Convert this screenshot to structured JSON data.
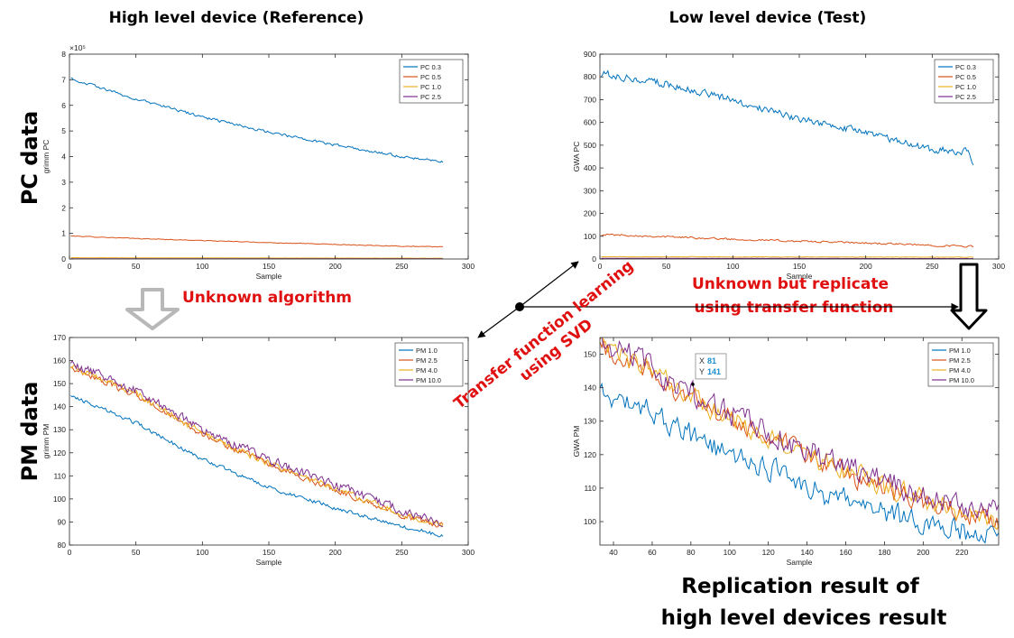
{
  "headers": {
    "left": "High level device (Reference)",
    "right": "Low level device (Test)"
  },
  "row_labels": {
    "top": "PC data",
    "bottom": "PM data"
  },
  "annotations": {
    "unknown_algorithm": "Unknown algorithm",
    "replicate_line1": "Unknown but replicate",
    "replicate_line2": "using transfer function",
    "svd_line1": "Transfer function learning",
    "svd_line2": "using  SVD",
    "result_line1": "Replication result of",
    "result_line2": "high level devices result"
  },
  "colors": {
    "series1": "#0072BD",
    "series2": "#D95319",
    "series3": "#EDB120",
    "series4": "#7E2F8E",
    "annotation_red": "#e01010",
    "arrow_gray": "#b8b8b8"
  },
  "chart_data": [
    {
      "id": "ref_pc",
      "type": "line",
      "ylabel": "grimm PC",
      "xlabel": "Sample",
      "xlim": [
        0,
        300
      ],
      "ylim": [
        0,
        8
      ],
      "yexp": "×10⁵",
      "xticks": [
        0,
        50,
        100,
        150,
        200,
        250,
        300
      ],
      "yticks": [
        0,
        1,
        2,
        3,
        4,
        5,
        6,
        7,
        8
      ],
      "legend": "top-right",
      "series": [
        {
          "name": "PC 0.3",
          "x": [
            1,
            50,
            100,
            150,
            200,
            250,
            281
          ],
          "values": [
            7.05,
            6.25,
            5.55,
            4.95,
            4.45,
            4.0,
            3.8
          ],
          "noise": 0.07
        },
        {
          "name": "PC 0.5",
          "x": [
            1,
            50,
            100,
            150,
            200,
            250,
            281
          ],
          "values": [
            0.9,
            0.8,
            0.72,
            0.64,
            0.57,
            0.5,
            0.47
          ],
          "noise": 0.02
        },
        {
          "name": "PC 1.0",
          "x": [
            1,
            281
          ],
          "values": [
            0.05,
            0.03
          ],
          "noise": 0.005
        },
        {
          "name": "PC 2.5",
          "x": [
            1,
            281
          ],
          "values": [
            0.01,
            0.01
          ],
          "noise": 0.002
        }
      ]
    },
    {
      "id": "test_pc",
      "type": "line",
      "ylabel": "GWA PC",
      "xlabel": "Sample",
      "xlim": [
        0,
        300
      ],
      "ylim": [
        0,
        900
      ],
      "xticks": [
        0,
        50,
        100,
        150,
        200,
        250,
        300
      ],
      "yticks": [
        0,
        100,
        200,
        300,
        400,
        500,
        600,
        700,
        800,
        900
      ],
      "legend": "top-right",
      "series": [
        {
          "name": "PC 0.3",
          "x": [
            1,
            50,
            100,
            150,
            200,
            250,
            278,
            281
          ],
          "values": [
            815,
            770,
            700,
            615,
            555,
            480,
            470,
            410
          ],
          "noise": 22
        },
        {
          "name": "PC 0.5",
          "x": [
            1,
            50,
            100,
            150,
            200,
            250,
            281
          ],
          "values": [
            108,
            98,
            87,
            78,
            70,
            60,
            55
          ],
          "noise": 6
        },
        {
          "name": "PC 1.0",
          "x": [
            1,
            281
          ],
          "values": [
            10,
            8
          ],
          "noise": 1.5
        },
        {
          "name": "PC 2.5",
          "x": [
            1,
            281
          ],
          "values": [
            3,
            2
          ],
          "noise": 0.5
        }
      ]
    },
    {
      "id": "ref_pm",
      "type": "line",
      "ylabel": "grimm PM",
      "xlabel": "Sample",
      "xlim": [
        0,
        300
      ],
      "ylim": [
        80,
        170
      ],
      "xticks": [
        0,
        50,
        100,
        150,
        200,
        250,
        300
      ],
      "yticks": [
        80,
        90,
        100,
        110,
        120,
        130,
        140,
        150,
        160,
        170
      ],
      "legend": "top-right",
      "series": [
        {
          "name": "PM 1.0",
          "x": [
            1,
            50,
            100,
            150,
            200,
            250,
            281
          ],
          "values": [
            145,
            133,
            117,
            105,
            96,
            88,
            84
          ],
          "noise": 1.2
        },
        {
          "name": "PM 2.5",
          "x": [
            1,
            50,
            100,
            150,
            200,
            250,
            281
          ],
          "values": [
            157,
            145,
            128,
            115,
            104,
            93,
            88
          ],
          "noise": 1.8
        },
        {
          "name": "PM 4.0",
          "x": [
            1,
            50,
            100,
            150,
            200,
            250,
            281
          ],
          "values": [
            157.5,
            146,
            128.5,
            115.5,
            104.5,
            93.5,
            88.5
          ],
          "noise": 1.9
        },
        {
          "name": "PM 10.0",
          "x": [
            1,
            50,
            100,
            150,
            200,
            250,
            281
          ],
          "values": [
            159,
            147,
            130,
            117,
            106,
            95,
            89
          ],
          "noise": 2.6
        }
      ]
    },
    {
      "id": "test_pm",
      "type": "line",
      "ylabel": "GWA PM",
      "xlabel": "Sample",
      "xlim": [
        33,
        239
      ],
      "ylim": [
        93,
        155
      ],
      "xticks": [
        40,
        60,
        80,
        100,
        120,
        140,
        160,
        180,
        200,
        220
      ],
      "yticks": [
        100,
        110,
        120,
        130,
        140,
        150
      ],
      "legend": "top-right",
      "datatip": {
        "x_label": "X",
        "x_value": "81",
        "y_label": "Y",
        "y_value": "141"
      },
      "series": [
        {
          "name": "PM 1.0",
          "x": [
            33,
            60,
            90,
            120,
            150,
            180,
            210,
            239
          ],
          "values": [
            138,
            133,
            122,
            116,
            108,
            103,
            98,
            96
          ],
          "noise": 5
        },
        {
          "name": "PM 2.5",
          "x": [
            33,
            60,
            90,
            120,
            150,
            180,
            210,
            239
          ],
          "values": [
            152,
            144,
            133,
            125,
            117,
            110,
            104,
            100
          ],
          "noise": 4.5
        },
        {
          "name": "PM 4.0",
          "x": [
            33,
            60,
            90,
            120,
            150,
            180,
            210,
            239
          ],
          "values": [
            152.5,
            144.5,
            133.5,
            125.5,
            117.5,
            110.5,
            104.5,
            100.5
          ],
          "noise": 4.6
        },
        {
          "name": "PM 10.0",
          "x": [
            33,
            60,
            90,
            120,
            150,
            180,
            210,
            239
          ],
          "values": [
            154,
            146,
            135,
            127,
            119,
            112,
            106,
            102
          ],
          "noise": 5.5
        }
      ]
    }
  ]
}
